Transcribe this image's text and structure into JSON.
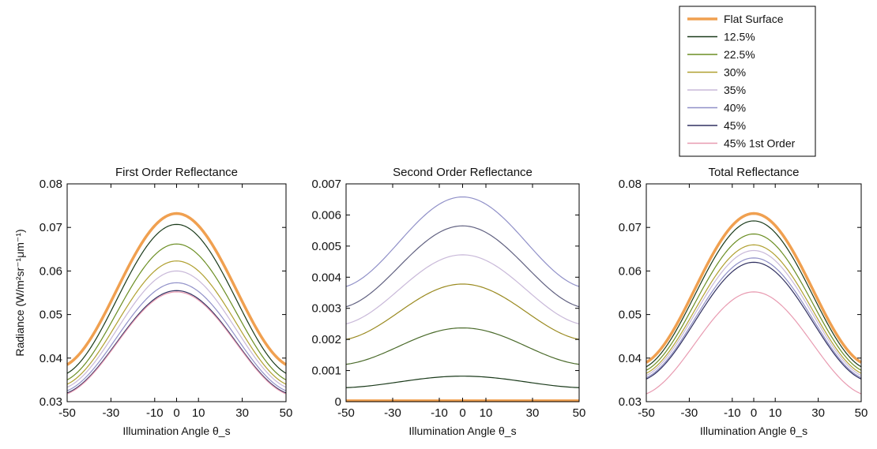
{
  "chart_data": [
    {
      "type": "line",
      "title": "First Order Reflectance",
      "xlabel": "Illumination Angle θ_s",
      "ylabel": "Radiance (W/m²sr⁻¹μm⁻¹)",
      "xlim": [
        -50,
        50
      ],
      "ylim": [
        0.03,
        0.08
      ],
      "xticks": [
        "-50",
        "-30",
        "-10",
        "0",
        "10",
        "30",
        "50"
      ],
      "xtick_values": [
        -50,
        -30,
        -10,
        0,
        10,
        30,
        50
      ],
      "yticks": [
        "0.03",
        "0.04",
        "0.05",
        "0.06",
        "0.07",
        "0.08"
      ],
      "ytick_values": [
        0.03,
        0.04,
        0.05,
        0.06,
        0.07,
        0.08
      ],
      "grid": false,
      "series": [
        {
          "name": "Flat Surface",
          "color": "#f0a050",
          "width": 3.5,
          "peak": 0.0732,
          "edge": 0.0385
        },
        {
          "name": "12.5%",
          "color": "#1a3a1a",
          "width": 1.2,
          "peak": 0.0707,
          "edge": 0.0365
        },
        {
          "name": "22.5%",
          "color": "#6b8e23",
          "width": 1.2,
          "peak": 0.0662,
          "edge": 0.035
        },
        {
          "name": "30%",
          "color": "#b0a030",
          "width": 1.2,
          "peak": 0.0623,
          "edge": 0.034
        },
        {
          "name": "35%",
          "color": "#c9b9d9",
          "width": 1.2,
          "peak": 0.06,
          "edge": 0.0333
        },
        {
          "name": "40%",
          "color": "#9090c8",
          "width": 1.2,
          "peak": 0.0573,
          "edge": 0.0325
        },
        {
          "name": "45%",
          "color": "#303060",
          "width": 1.2,
          "peak": 0.0555,
          "edge": 0.032
        },
        {
          "name": "45% 1st Order",
          "color": "#e89ab0",
          "width": 1.2,
          "peak": 0.0552,
          "edge": 0.0318
        }
      ]
    },
    {
      "type": "line",
      "title": "Second Order Reflectance",
      "xlabel": "Illumination Angle θ_s",
      "ylabel": "",
      "xlim": [
        -50,
        50
      ],
      "ylim": [
        0,
        0.007
      ],
      "xticks": [
        "-50",
        "-30",
        "-10",
        "0",
        "10",
        "30",
        "50"
      ],
      "xtick_values": [
        -50,
        -30,
        -10,
        0,
        10,
        30,
        50
      ],
      "yticks": [
        "0",
        "0.001",
        "0.002",
        "0.003",
        "0.004",
        "0.005",
        "0.006",
        "0.007"
      ],
      "ytick_values": [
        0,
        0.001,
        0.002,
        0.003,
        0.004,
        0.005,
        0.006,
        0.007
      ],
      "grid": false,
      "series": [
        {
          "name": "Flat Surface",
          "color": "#f0a050",
          "width": 3.5,
          "peak": 3e-05,
          "edge": 3e-05
        },
        {
          "name": "12.5%",
          "color": "#1a3a1a",
          "width": 1.2,
          "peak": 0.00082,
          "edge": 0.00045
        },
        {
          "name": "22.5%",
          "color": "#4a6a2a",
          "width": 1.2,
          "peak": 0.00237,
          "edge": 0.0012
        },
        {
          "name": "30%",
          "color": "#9a8a20",
          "width": 1.2,
          "peak": 0.00378,
          "edge": 0.002
        },
        {
          "name": "35%",
          "color": "#c9b9d9",
          "width": 1.2,
          "peak": 0.00472,
          "edge": 0.0025
        },
        {
          "name": "40%",
          "color": "#606080",
          "width": 1.2,
          "peak": 0.00565,
          "edge": 0.00305
        },
        {
          "name": "45%",
          "color": "#9090c8",
          "width": 1.2,
          "peak": 0.00658,
          "edge": 0.0037
        }
      ]
    },
    {
      "type": "line",
      "title": "Total Reflectance",
      "xlabel": "Illumination Angle θ_s",
      "ylabel": "",
      "xlim": [
        -50,
        50
      ],
      "ylim": [
        0.03,
        0.08
      ],
      "xticks": [
        "-50",
        "-30",
        "-10",
        "0",
        "10",
        "30",
        "50"
      ],
      "xtick_values": [
        -50,
        -30,
        -10,
        0,
        10,
        30,
        50
      ],
      "yticks": [
        "0.03",
        "0.04",
        "0.05",
        "0.06",
        "0.07",
        "0.08"
      ],
      "ytick_values": [
        0.03,
        0.04,
        0.05,
        0.06,
        0.07,
        0.08
      ],
      "grid": false,
      "series": [
        {
          "name": "Flat Surface",
          "color": "#f0a050",
          "width": 3.5,
          "peak": 0.0732,
          "edge": 0.039
        },
        {
          "name": "12.5%",
          "color": "#1a3a1a",
          "width": 1.2,
          "peak": 0.0715,
          "edge": 0.038
        },
        {
          "name": "22.5%",
          "color": "#6b8e23",
          "width": 1.2,
          "peak": 0.0685,
          "edge": 0.0372
        },
        {
          "name": "30%",
          "color": "#b0a030",
          "width": 1.2,
          "peak": 0.066,
          "edge": 0.0365
        },
        {
          "name": "35%",
          "color": "#c9b9d9",
          "width": 1.2,
          "peak": 0.0647,
          "edge": 0.036
        },
        {
          "name": "40%",
          "color": "#9090c8",
          "width": 1.2,
          "peak": 0.063,
          "edge": 0.0355
        },
        {
          "name": "45%",
          "color": "#303060",
          "width": 1.2,
          "peak": 0.062,
          "edge": 0.0352
        },
        {
          "name": "45% 1st Order",
          "color": "#e89ab0",
          "width": 1.2,
          "peak": 0.0552,
          "edge": 0.0318
        }
      ]
    }
  ],
  "legend": {
    "placement": "top-right",
    "entries": [
      {
        "label": "Flat Surface",
        "color": "#f0a050"
      },
      {
        "label": "12.5%",
        "color": "#1a3a1a"
      },
      {
        "label": "22.5%",
        "color": "#6b8e23"
      },
      {
        "label": "30%",
        "color": "#b0a030"
      },
      {
        "label": "35%",
        "color": "#c9b9d9"
      },
      {
        "label": "40%",
        "color": "#9090c8"
      },
      {
        "label": "45%",
        "color": "#303060"
      },
      {
        "label": "45% 1st Order",
        "color": "#e89ab0"
      }
    ]
  }
}
